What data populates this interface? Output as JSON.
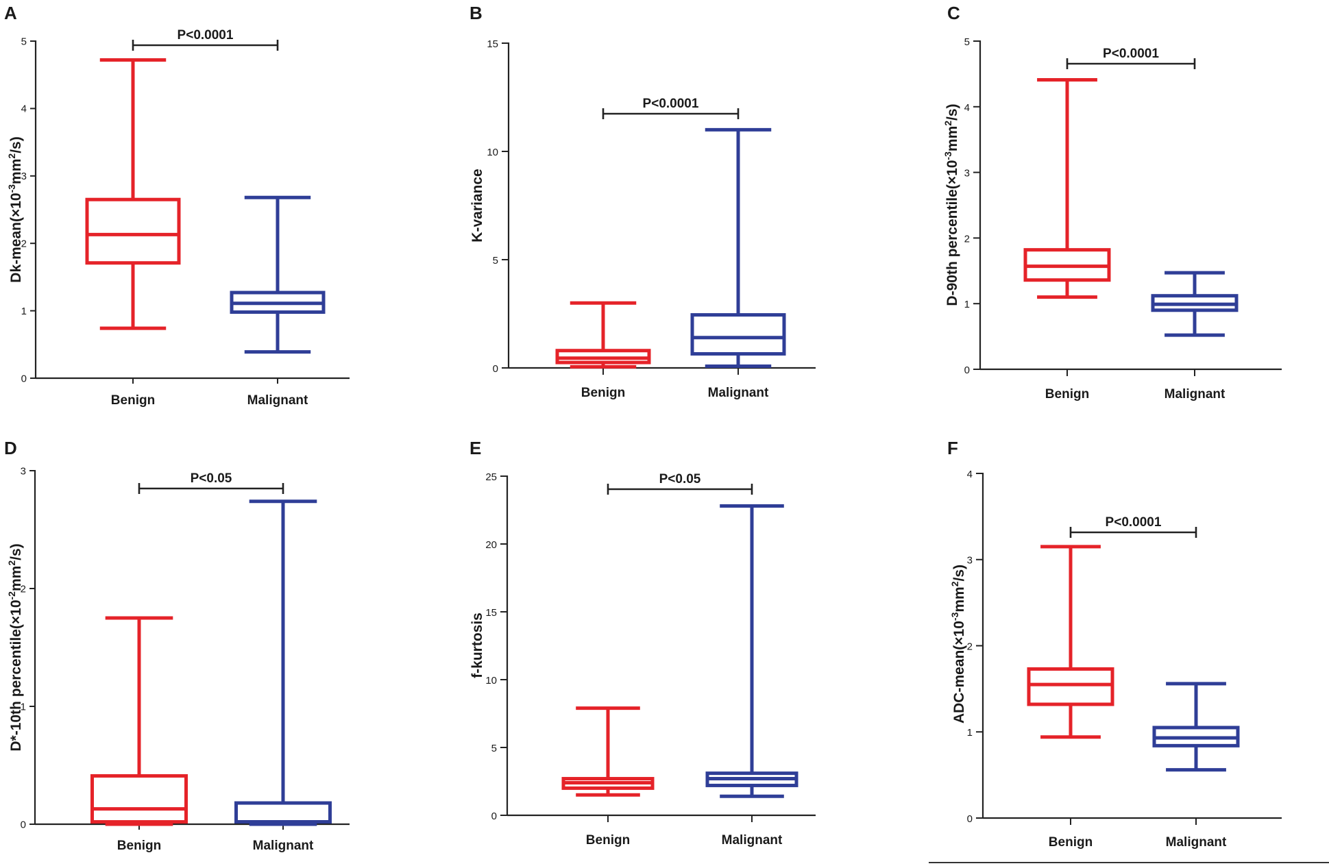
{
  "figure": {
    "colors": {
      "benign": "#e52329",
      "malignant": "#2f3e97",
      "axis": "#222222"
    },
    "divider": true
  },
  "chart_data": [
    {
      "panel": "A",
      "type": "box",
      "ylabel": "Dk-mean(×10^-3mm^2/s)",
      "ylabel_parts": {
        "base": "Dk-mean(×10",
        "exp1": "-3",
        "mid": "mm",
        "exp2": "2",
        "tail": "/s)"
      },
      "categories": [
        "Benign",
        "Malignant"
      ],
      "ylim": [
        0,
        5
      ],
      "yticks": [
        0,
        1,
        2,
        3,
        4,
        5
      ],
      "boxes": [
        {
          "name": "Benign",
          "min": 0.74,
          "q1": 1.71,
          "median": 2.13,
          "q3": 2.65,
          "max": 4.72
        },
        {
          "name": "Malignant",
          "min": 0.39,
          "q1": 0.98,
          "median": 1.11,
          "q3": 1.27,
          "max": 2.68
        }
      ],
      "significance": "P<0.0001"
    },
    {
      "panel": "B",
      "type": "box",
      "ylabel": "K-variance",
      "categories": [
        "Benign",
        "Malignant"
      ],
      "ylim": [
        0,
        15
      ],
      "yticks": [
        0,
        5,
        10,
        15
      ],
      "boxes": [
        {
          "name": "Benign",
          "min": 0.05,
          "q1": 0.25,
          "median": 0.45,
          "q3": 0.8,
          "max": 3.0
        },
        {
          "name": "Malignant",
          "min": 0.08,
          "q1": 0.65,
          "median": 1.4,
          "q3": 2.45,
          "max": 11.0
        }
      ],
      "significance": "P<0.0001"
    },
    {
      "panel": "C",
      "type": "box",
      "ylabel": "D-90th percentile(×10^-3mm^2/s)",
      "ylabel_parts": {
        "base": "D-90th percentile(×10",
        "exp1": "-3",
        "mid": "mm",
        "exp2": "2",
        "tail": "/s)"
      },
      "categories": [
        "Benign",
        "Malignant"
      ],
      "ylim": [
        0,
        5
      ],
      "yticks": [
        0,
        1,
        2,
        3,
        4,
        5
      ],
      "boxes": [
        {
          "name": "Benign",
          "min": 1.1,
          "q1": 1.36,
          "median": 1.57,
          "q3": 1.82,
          "max": 4.41
        },
        {
          "name": "Malignant",
          "min": 0.52,
          "q1": 0.9,
          "median": 0.99,
          "q3": 1.12,
          "max": 1.47
        }
      ],
      "significance": "P<0.0001"
    },
    {
      "panel": "D",
      "type": "box",
      "ylabel": "D*-10th percentile(×10^-2mm^2/s)",
      "ylabel_parts": {
        "base": "D*-10th percentile(×10",
        "exp1": "-2",
        "mid": "mm",
        "exp2": "2",
        "tail": "/s)"
      },
      "categories": [
        "Benign",
        "Malignant"
      ],
      "ylim": [
        0,
        3
      ],
      "yticks": [
        0,
        1,
        2,
        3
      ],
      "boxes": [
        {
          "name": "Benign",
          "min": 0.0,
          "q1": 0.02,
          "median": 0.13,
          "q3": 0.41,
          "max": 1.75
        },
        {
          "name": "Malignant",
          "min": 0.0,
          "q1": 0.02,
          "median": 0.02,
          "q3": 0.18,
          "max": 2.74
        }
      ],
      "significance": "P<0.05"
    },
    {
      "panel": "E",
      "type": "box",
      "ylabel": "f-kurtosis",
      "categories": [
        "Benign",
        "Malignant"
      ],
      "ylim": [
        0,
        25
      ],
      "yticks": [
        0,
        5,
        10,
        15,
        20,
        25
      ],
      "boxes": [
        {
          "name": "Benign",
          "min": 1.5,
          "q1": 2.0,
          "median": 2.4,
          "q3": 2.7,
          "max": 7.9
        },
        {
          "name": "Malignant",
          "min": 1.4,
          "q1": 2.2,
          "median": 2.7,
          "q3": 3.1,
          "max": 22.8
        }
      ],
      "significance": "P<0.05"
    },
    {
      "panel": "F",
      "type": "box",
      "ylabel": "ADC-mean(×10^-3mm^2/s)",
      "ylabel_parts": {
        "base": "ADC-mean(×10",
        "exp1": "-3",
        "mid": "mm",
        "exp2": "2",
        "tail": "/s)"
      },
      "categories": [
        "Benign",
        "Malignant"
      ],
      "ylim": [
        0,
        4
      ],
      "yticks": [
        0,
        1,
        2,
        3,
        4
      ],
      "boxes": [
        {
          "name": "Benign",
          "min": 0.94,
          "q1": 1.32,
          "median": 1.55,
          "q3": 1.73,
          "max": 3.15
        },
        {
          "name": "Malignant",
          "min": 0.56,
          "q1": 0.84,
          "median": 0.93,
          "q3": 1.05,
          "max": 1.56
        }
      ],
      "significance": "P<0.0001"
    }
  ]
}
